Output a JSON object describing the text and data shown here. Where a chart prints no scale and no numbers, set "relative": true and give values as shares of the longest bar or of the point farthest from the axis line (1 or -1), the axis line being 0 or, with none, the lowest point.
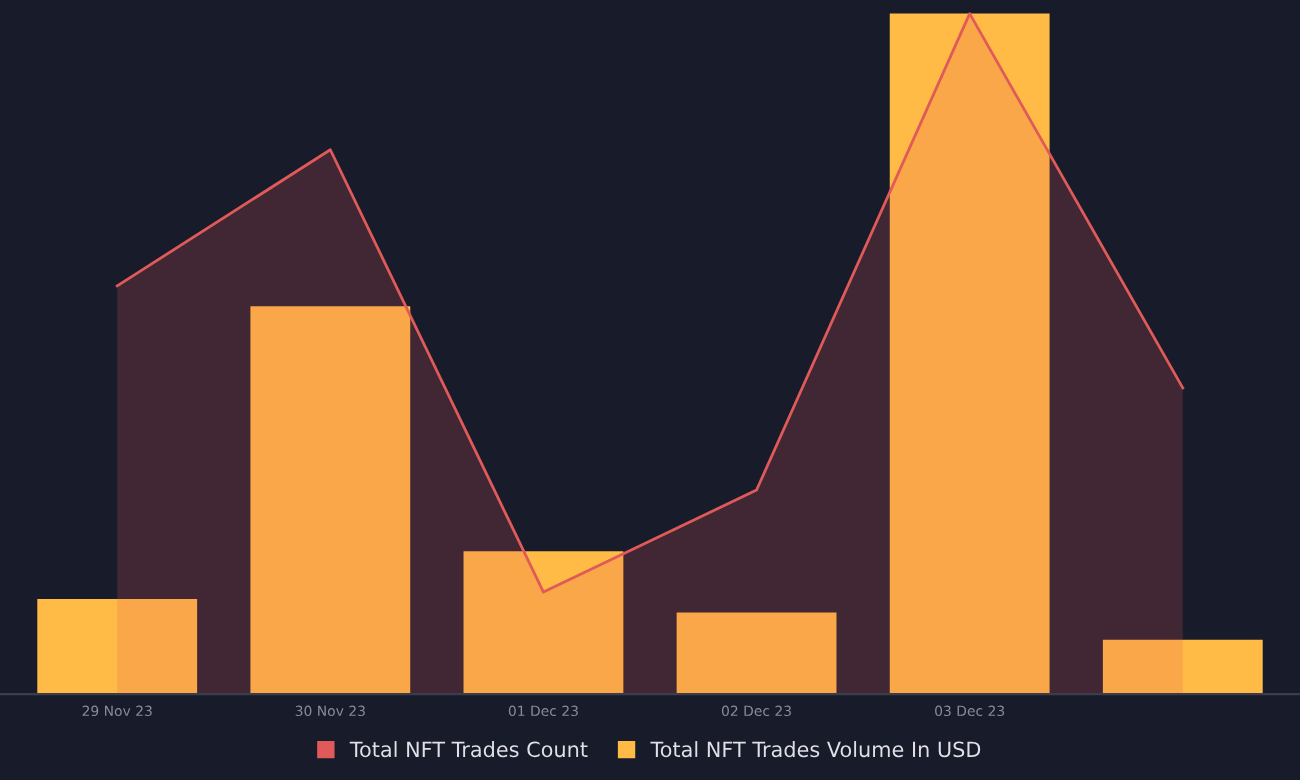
{
  "chart_data": {
    "type": "bar",
    "relative": true,
    "categories": [
      "29 Nov 23",
      "30 Nov 23",
      "01 Dec 23",
      "02 Dec 23",
      "03 Dec 23",
      null
    ],
    "series": [
      {
        "name": "Total NFT Trades Volume In USD",
        "color": "#ffbb45",
        "values": [
          0.14,
          0.57,
          0.21,
          0.12,
          1.0,
          0.08
        ]
      },
      {
        "name": "Total NFT Trades Count",
        "type": "area",
        "color": "#e05a5a",
        "values": [
          0.6,
          0.8,
          0.15,
          0.3,
          1.0,
          0.45
        ]
      }
    ],
    "legend": "bottom",
    "grid": false
  }
}
